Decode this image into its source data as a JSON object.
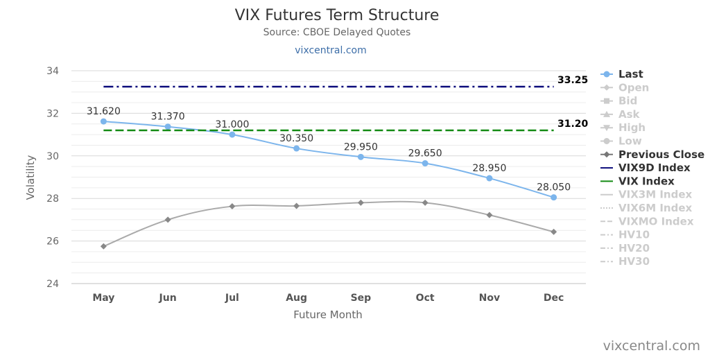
{
  "title": "VIX Futures Term Structure",
  "subtitle": "Source: CBOE Delayed Quotes",
  "link_text": "vixcentral.com",
  "credit": "vixcentral.com",
  "chart_data": {
    "type": "line",
    "title": "VIX Futures Term Structure",
    "xlabel": "Future Month",
    "ylabel": "Volatility",
    "categories": [
      "May",
      "Jun",
      "Jul",
      "Aug",
      "Sep",
      "Oct",
      "Nov",
      "Dec"
    ],
    "ylim": [
      24,
      34
    ],
    "yticks": [
      "24",
      "26",
      "28",
      "30",
      "32",
      "34"
    ],
    "grid": true,
    "legend_position": "right",
    "series": [
      {
        "name": "Last",
        "values": [
          31.62,
          31.37,
          31.0,
          30.35,
          29.95,
          29.65,
          28.95,
          28.05
        ],
        "labels": [
          "31.620",
          "31.370",
          "31.000",
          "30.350",
          "29.950",
          "29.650",
          "28.950",
          "28.050"
        ],
        "color": "#7cb5ec",
        "marker": "circle"
      },
      {
        "name": "Previous Close",
        "values": [
          25.75,
          27.0,
          27.63,
          27.65,
          27.8,
          27.8,
          27.22,
          26.43
        ],
        "color": "#aaaaaa",
        "marker": "diamond"
      },
      {
        "name": "VIX9D Index",
        "value": 33.25,
        "label": "33.25",
        "color": "#0a0a7a",
        "dash": "dashdot"
      },
      {
        "name": "VIX Index",
        "value": 31.2,
        "label": "31.20",
        "color": "#138a13",
        "dash": "dash"
      }
    ],
    "legend": [
      {
        "name": "Last",
        "active": true,
        "color": "#7cb5ec",
        "symbol": "circle-line"
      },
      {
        "name": "Open",
        "active": false,
        "color": "#cccccc",
        "symbol": "diamond-line"
      },
      {
        "name": "Bid",
        "active": false,
        "color": "#cccccc",
        "symbol": "square-line"
      },
      {
        "name": "Ask",
        "active": false,
        "color": "#cccccc",
        "symbol": "triangle-line"
      },
      {
        "name": "High",
        "active": false,
        "color": "#cccccc",
        "symbol": "triangle-down-line"
      },
      {
        "name": "Low",
        "active": false,
        "color": "#cccccc",
        "symbol": "circle-line"
      },
      {
        "name": "Previous Close",
        "active": true,
        "color": "#777777",
        "symbol": "diamond-line"
      },
      {
        "name": "VIX9D Index",
        "active": true,
        "color": "#0a0a7a",
        "symbol": "line"
      },
      {
        "name": "VIX Index",
        "active": true,
        "color": "#138a13",
        "symbol": "line"
      },
      {
        "name": "VIX3M Index",
        "active": false,
        "color": "#cccccc",
        "symbol": "line"
      },
      {
        "name": "VIX6M Index",
        "active": false,
        "color": "#cccccc",
        "symbol": "dotted"
      },
      {
        "name": "VIXMO Index",
        "active": false,
        "color": "#cccccc",
        "symbol": "dashed"
      },
      {
        "name": "HV10",
        "active": false,
        "color": "#cccccc",
        "symbol": "dashdot"
      },
      {
        "name": "HV20",
        "active": false,
        "color": "#cccccc",
        "symbol": "dashdot"
      },
      {
        "name": "HV30",
        "active": false,
        "color": "#cccccc",
        "symbol": "dashdot"
      }
    ]
  }
}
